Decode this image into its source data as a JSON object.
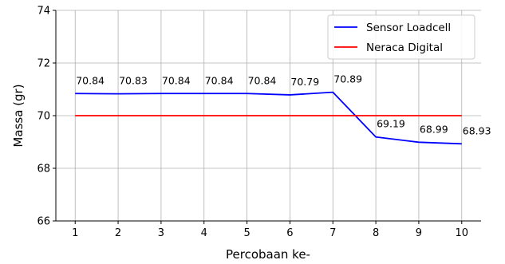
{
  "chart_data": {
    "type": "line",
    "xlabel": "Percobaan ke-",
    "ylabel": "Massa (gr)",
    "x": [
      1,
      2,
      3,
      4,
      5,
      6,
      7,
      8,
      9,
      10
    ],
    "xlim": [
      0.55,
      10.45
    ],
    "ylim": [
      66,
      74
    ],
    "yticks": [
      66,
      68,
      70,
      72,
      74
    ],
    "grid": true,
    "legend_position": "top-right",
    "series": [
      {
        "name": "Sensor Loadcell",
        "color": "#0000ff",
        "values": [
          70.84,
          70.83,
          70.84,
          70.84,
          70.84,
          70.79,
          70.89,
          69.19,
          68.99,
          68.93
        ],
        "labels": [
          "70.84",
          "70.83",
          "70.84",
          "70.84",
          "70.84",
          "70.79",
          "70.89",
          "69.19",
          "68.99",
          "68.93"
        ]
      },
      {
        "name": "Neraca Digital",
        "color": "#ff0000",
        "values": [
          70,
          70,
          70,
          70,
          70,
          70,
          70,
          70,
          70,
          70
        ]
      }
    ]
  }
}
